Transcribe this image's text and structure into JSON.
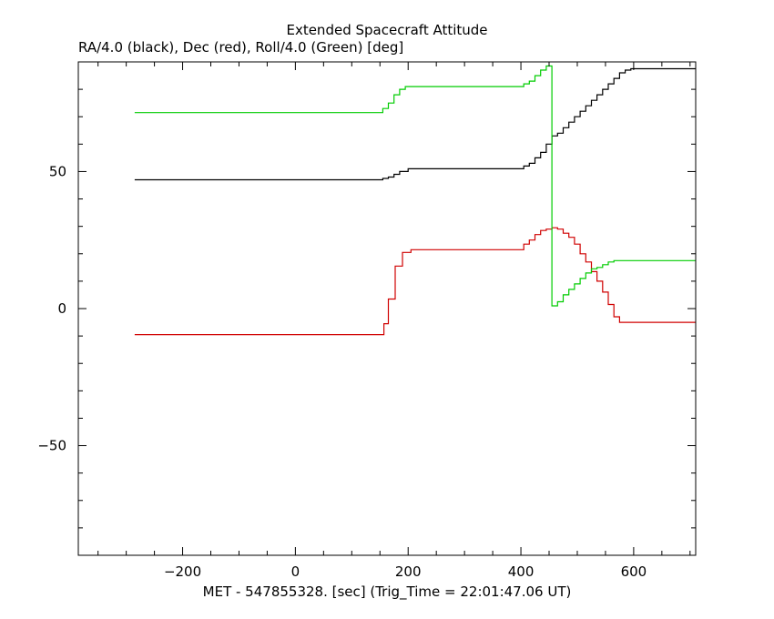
{
  "chart_data": {
    "type": "line",
    "step": true,
    "title": "Extended Spacecraft Attitude",
    "subtitle": "RA/4.0 (black), Dec (red), Roll/4.0 (Green) [deg]",
    "xlabel": "MET - 547855328. [sec] (Trig_Time = 22:01:47.06 UT)",
    "ylabel": "",
    "xlim": [
      -385,
      710
    ],
    "ylim": [
      -90,
      90
    ],
    "x_ticks": [
      -200,
      0,
      200,
      400,
      600
    ],
    "y_ticks": [
      -50,
      0,
      50
    ],
    "grid": false,
    "legend": "none",
    "series": [
      {
        "color": "#000000",
        "points": [
          [
            -285,
            47
          ],
          [
            145,
            47
          ],
          [
            155,
            47.5
          ],
          [
            165,
            48
          ],
          [
            175,
            49
          ],
          [
            185,
            50
          ],
          [
            200,
            51
          ],
          [
            220,
            51
          ],
          [
            395,
            51
          ],
          [
            405,
            52
          ],
          [
            415,
            53
          ],
          [
            425,
            55
          ],
          [
            435,
            57
          ],
          [
            445,
            60
          ],
          [
            455,
            63
          ],
          [
            465,
            64
          ],
          [
            475,
            66
          ],
          [
            485,
            68
          ],
          [
            495,
            70
          ],
          [
            505,
            72
          ],
          [
            515,
            74
          ],
          [
            525,
            76
          ],
          [
            535,
            78
          ],
          [
            545,
            80
          ],
          [
            555,
            82
          ],
          [
            565,
            84
          ],
          [
            575,
            86
          ],
          [
            585,
            87
          ],
          [
            595,
            87.5
          ],
          [
            710,
            87.5
          ]
        ]
      },
      {
        "color": "#d00000",
        "points": [
          [
            -285,
            -9.5
          ],
          [
            150,
            -9.5
          ],
          [
            157,
            -5.5
          ],
          [
            165,
            3.5
          ],
          [
            177,
            15.5
          ],
          [
            190,
            20.5
          ],
          [
            205,
            21.5
          ],
          [
            395,
            21.5
          ],
          [
            405,
            23.5
          ],
          [
            415,
            25
          ],
          [
            425,
            27
          ],
          [
            435,
            28.5
          ],
          [
            445,
            29
          ],
          [
            455,
            29.5
          ],
          [
            465,
            29
          ],
          [
            475,
            27.5
          ],
          [
            485,
            26
          ],
          [
            495,
            23.5
          ],
          [
            505,
            20
          ],
          [
            515,
            17
          ],
          [
            525,
            13.5
          ],
          [
            535,
            10
          ],
          [
            545,
            6
          ],
          [
            555,
            1.5
          ],
          [
            565,
            -3
          ],
          [
            575,
            -5
          ],
          [
            710,
            -5
          ]
        ]
      },
      {
        "color": "#00cc00",
        "points": [
          [
            -285,
            71.5
          ],
          [
            145,
            71.5
          ],
          [
            155,
            73
          ],
          [
            165,
            75
          ],
          [
            175,
            78
          ],
          [
            185,
            80
          ],
          [
            195,
            81
          ],
          [
            205,
            81
          ],
          [
            395,
            81
          ],
          [
            405,
            82
          ],
          [
            415,
            83
          ],
          [
            425,
            85
          ],
          [
            435,
            87
          ],
          [
            445,
            88.5
          ],
          [
            455,
            1
          ],
          [
            465,
            2.5
          ],
          [
            475,
            5
          ],
          [
            485,
            7
          ],
          [
            495,
            9
          ],
          [
            505,
            11
          ],
          [
            515,
            13
          ],
          [
            525,
            14.5
          ],
          [
            535,
            15
          ],
          [
            545,
            16
          ],
          [
            555,
            17
          ],
          [
            565,
            17.5
          ],
          [
            575,
            17.5
          ],
          [
            710,
            17.5
          ]
        ]
      }
    ]
  }
}
